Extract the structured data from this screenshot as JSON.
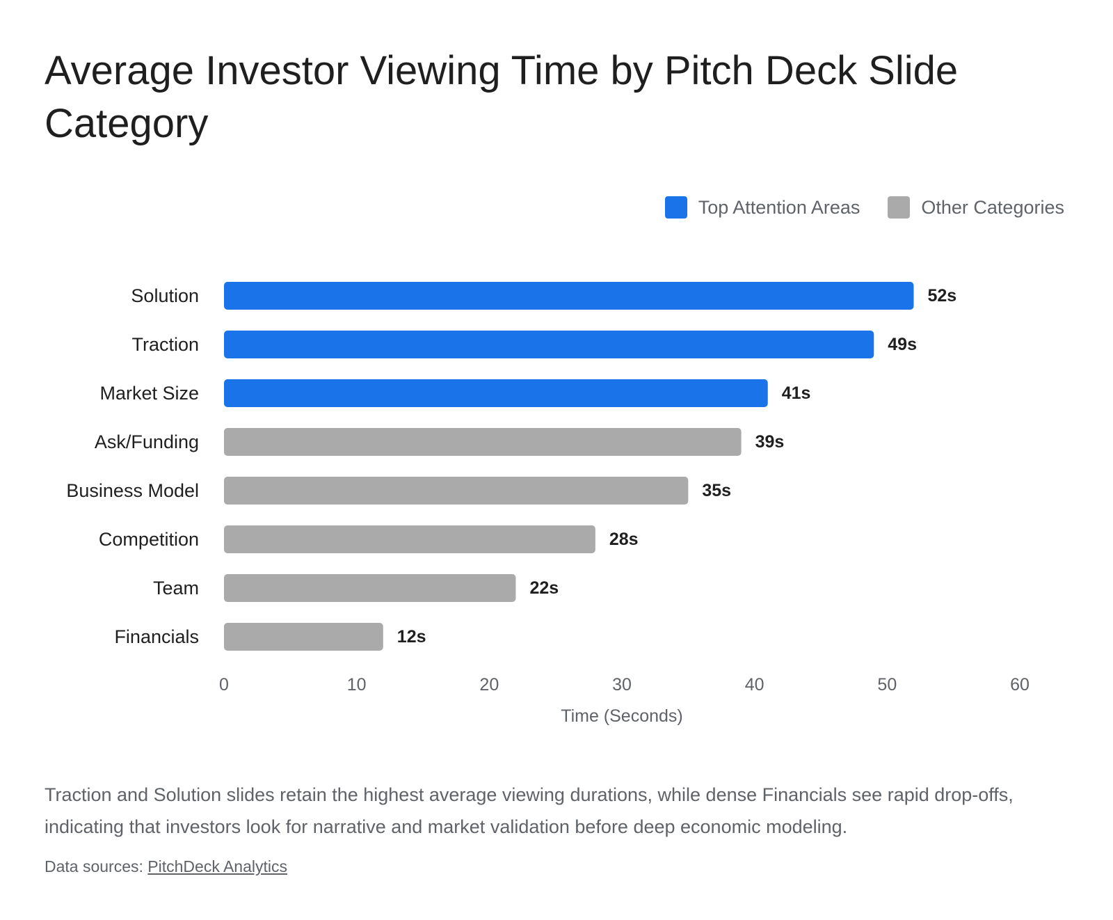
{
  "title": "Average Investor Viewing Time by Pitch Deck Slide Category",
  "legend": {
    "items": [
      {
        "label": "Top Attention Areas",
        "color": "#1a73e8"
      },
      {
        "label": "Other Categories",
        "color": "#aaaaaa"
      }
    ]
  },
  "chart_data": {
    "type": "bar",
    "orientation": "horizontal",
    "categories": [
      "Solution",
      "Traction",
      "Market Size",
      "Ask/Funding",
      "Business Model",
      "Competition",
      "Team",
      "Financials"
    ],
    "values": [
      52,
      49,
      41,
      39,
      35,
      28,
      22,
      12
    ],
    "value_labels": [
      "52s",
      "49s",
      "41s",
      "39s",
      "35s",
      "28s",
      "22s",
      "12s"
    ],
    "groups": [
      "Top Attention Areas",
      "Top Attention Areas",
      "Top Attention Areas",
      "Other Categories",
      "Other Categories",
      "Other Categories",
      "Other Categories",
      "Other Categories"
    ],
    "xlabel": "Time (Seconds)",
    "ylabel": "",
    "xlim": [
      0,
      60
    ],
    "xticks": [
      0,
      10,
      20,
      30,
      40,
      50,
      60
    ],
    "grid": false,
    "legend_position": "top-right"
  },
  "description": "Traction and Solution slides retain the highest average viewing durations, while dense Financials see rapid drop-offs, indicating that investors look for narrative and market validation before deep economic modeling.",
  "sources": {
    "prefix": "Data sources: ",
    "link_text": "PitchDeck Analytics"
  }
}
